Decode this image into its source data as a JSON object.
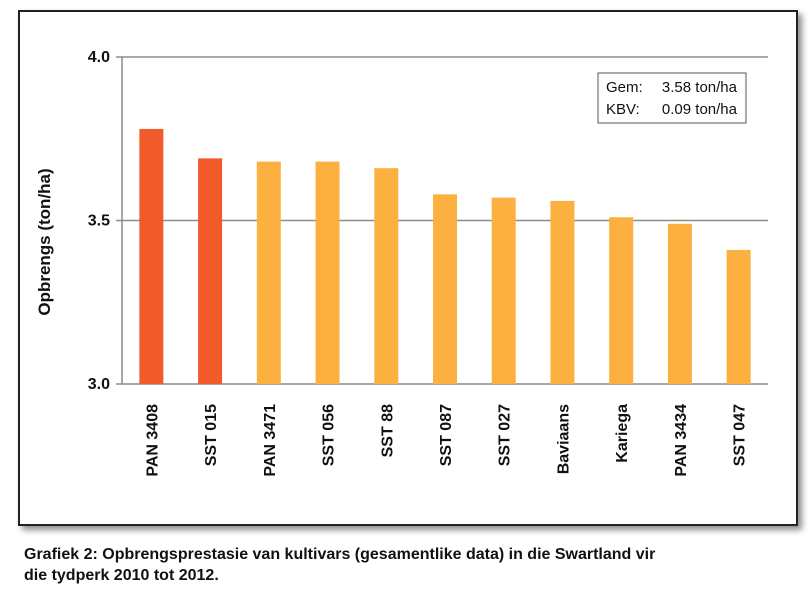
{
  "chart_data": {
    "type": "bar",
    "title": "",
    "xlabel": "",
    "ylabel": "Opbrengs (ton/ha)",
    "ylim": [
      3.0,
      4.0
    ],
    "yticks": [
      "3.0",
      "3.5",
      "4.0"
    ],
    "grid": true,
    "categories": [
      "PAN 3408",
      "SST 015",
      "PAN 3471",
      "SST 056",
      "SST 88",
      "SST 087",
      "SST 027",
      "Baviaans",
      "Kariega",
      "PAN 3434",
      "SST 047"
    ],
    "values": [
      3.78,
      3.69,
      3.68,
      3.68,
      3.66,
      3.58,
      3.57,
      3.56,
      3.51,
      3.49,
      3.41
    ],
    "bar_colors": [
      "#f15a2b",
      "#f15a2b",
      "#fbb040",
      "#fbb040",
      "#fbb040",
      "#fbb040",
      "#fbb040",
      "#fbb040",
      "#fbb040",
      "#fbb040",
      "#fbb040"
    ],
    "annotation": {
      "line1_label": "Gem:",
      "line1_value": "3.58 ton/ha",
      "line2_label": "KBV:",
      "line2_value": "0.09 ton/ha",
      "placement": "top-right"
    }
  },
  "caption": {
    "line1": "Grafiek 2: Opbrengsprestasie van kultivars (gesamentlike data) in die Swartland vir",
    "line2": "die tydperk 2010 tot 2012."
  }
}
